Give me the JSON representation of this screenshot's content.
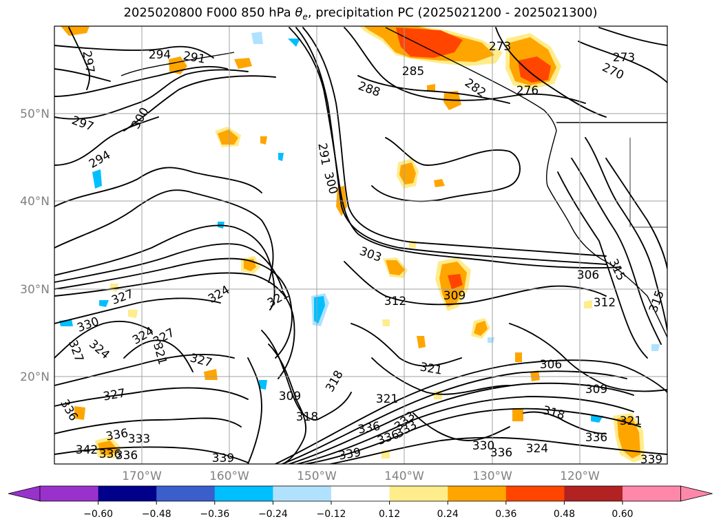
{
  "title": {
    "prefix": "2025020800 F000 850 hPa ",
    "symbol": "θ",
    "subscript": "e",
    "suffix": ", precipitation PC (2025021200 - 2025021300)"
  },
  "map": {
    "projection": "PlateCarree",
    "extent_lon": [
      -180,
      -110
    ],
    "extent_lat": [
      10,
      60
    ],
    "lat_ticks": [
      "50°N",
      "40°N",
      "30°N",
      "20°N"
    ],
    "lon_ticks": [
      "170°W",
      "160°W",
      "150°W",
      "140°W",
      "130°W",
      "120°W"
    ],
    "grid": true
  },
  "contour_labels": [
    "297",
    "294",
    "291",
    "297",
    "300",
    "294",
    "288",
    "285",
    "273",
    "282",
    "276",
    "273",
    "270",
    "291",
    "300",
    "303",
    "312",
    "309",
    "306",
    "312",
    "315",
    "315",
    "327",
    "324",
    "321",
    "330",
    "327",
    "324",
    "327",
    "324",
    "327",
    "321",
    "309",
    "318",
    "318",
    "321",
    "321",
    "306",
    "309",
    "318",
    "321",
    "333",
    "336",
    "330",
    "336",
    "324",
    "336",
    "339",
    "339",
    "336",
    "333",
    "339",
    "342",
    "336",
    "336",
    "333",
    "336",
    "327",
    "336"
  ],
  "colorbar": {
    "tick_labels": [
      "−0.60",
      "−0.48",
      "−0.36",
      "−0.24",
      "−0.12",
      "0.12",
      "0.24",
      "0.36",
      "0.48",
      "0.60"
    ],
    "colors": [
      "#9932cc",
      "#00008b",
      "#3a5fcd",
      "#00bfff",
      "#b0e2ff",
      "#ffffff",
      "#ffec8b",
      "#ffa500",
      "#ff4500",
      "#b22222",
      "#ff88aa"
    ],
    "extend": "both"
  },
  "colors": {
    "positive_light": "#ffec8b",
    "positive_mid": "#ffa500",
    "positive_strong": "#ff4500",
    "negative_light": "#b0e2ff",
    "negative_mid": "#00bfff",
    "contour": "#000000"
  }
}
